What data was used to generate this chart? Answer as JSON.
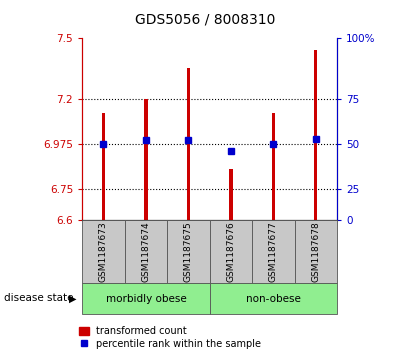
{
  "title": "GDS5056 / 8008310",
  "samples": [
    "GSM1187673",
    "GSM1187674",
    "GSM1187675",
    "GSM1187676",
    "GSM1187677",
    "GSM1187678"
  ],
  "transformed_counts": [
    7.13,
    7.2,
    7.35,
    6.85,
    7.13,
    7.44
  ],
  "percentile_ranks": [
    50,
    52,
    52,
    46,
    50,
    53
  ],
  "ylim_left": [
    6.6,
    7.5
  ],
  "yticks_left": [
    6.6,
    6.75,
    6.975,
    7.2,
    7.5
  ],
  "ytick_labels_left": [
    "6.6",
    "6.75",
    "6.975",
    "7.2",
    "7.5"
  ],
  "ylim_right": [
    0,
    100
  ],
  "yticks_right": [
    0,
    25,
    50,
    75,
    100
  ],
  "ytick_labels_right": [
    "0",
    "25",
    "50",
    "75",
    "100%"
  ],
  "bar_bottom": 6.6,
  "bar_color": "#cc0000",
  "dot_color": "#0000cc",
  "grid_lines": [
    6.75,
    6.975,
    7.2
  ],
  "groups": [
    {
      "label": "morbidly obese",
      "indices": [
        0,
        1,
        2
      ],
      "color": "#90ee90"
    },
    {
      "label": "non-obese",
      "indices": [
        3,
        4,
        5
      ],
      "color": "#90ee90"
    }
  ],
  "disease_state_label": "disease state",
  "legend_bar_label": "transformed count",
  "legend_dot_label": "percentile rank within the sample",
  "tick_label_box_color": "#c8c8c8",
  "background_color": "#ffffff",
  "plot_bg_color": "#ffffff",
  "bar_width": 0.08,
  "left_axis_color": "#cc0000",
  "right_axis_color": "#0000cc"
}
